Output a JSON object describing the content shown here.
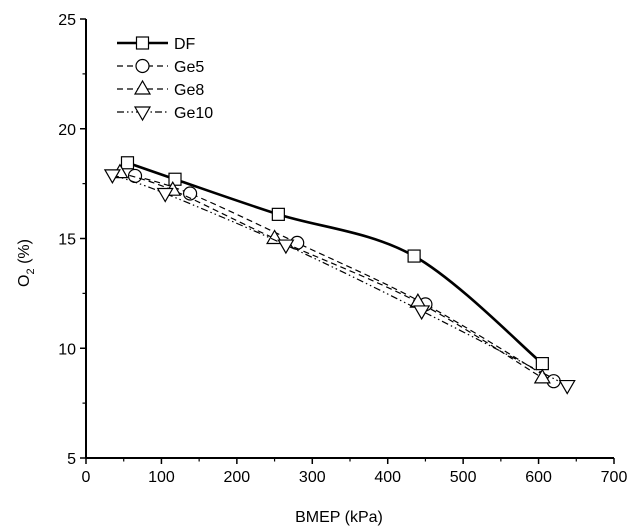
{
  "chart_data": {
    "type": "line",
    "title": "",
    "xlabel": "BMEP (kPa)",
    "ylabel": {
      "main": "O",
      "sub": "2",
      "suffix": " (%)"
    },
    "xlim": [
      0,
      700
    ],
    "ylim": [
      5,
      25
    ],
    "xticks": [
      0,
      100,
      200,
      300,
      400,
      500,
      600,
      700
    ],
    "yticks": [
      5,
      10,
      15,
      20,
      25
    ],
    "grid": false,
    "legend_position": "top-left",
    "series": [
      {
        "name": "DF",
        "marker": "square",
        "line_style": "solid",
        "x": [
          55,
          118,
          255,
          435,
          605
        ],
        "y": [
          18.45,
          17.7,
          16.1,
          14.2,
          9.3
        ]
      },
      {
        "name": "Ge5",
        "marker": "circle",
        "line_style": "dashed",
        "x": [
          65,
          138,
          280,
          450,
          620
        ],
        "y": [
          17.85,
          17.05,
          14.8,
          12.0,
          8.5
        ]
      },
      {
        "name": "Ge8",
        "marker": "triangle-up",
        "line_style": "dashed",
        "x": [
          45,
          115,
          250,
          440,
          605
        ],
        "y": [
          18.0,
          17.2,
          15.0,
          12.1,
          8.65
        ]
      },
      {
        "name": "Ge10",
        "marker": "triangle-down",
        "line_style": "dash-dot-dot",
        "x": [
          35,
          105,
          265,
          445,
          638
        ],
        "y": [
          17.9,
          17.05,
          14.7,
          11.7,
          8.3
        ]
      }
    ]
  },
  "colors": {
    "line": "#000000",
    "background": "#ffffff"
  }
}
